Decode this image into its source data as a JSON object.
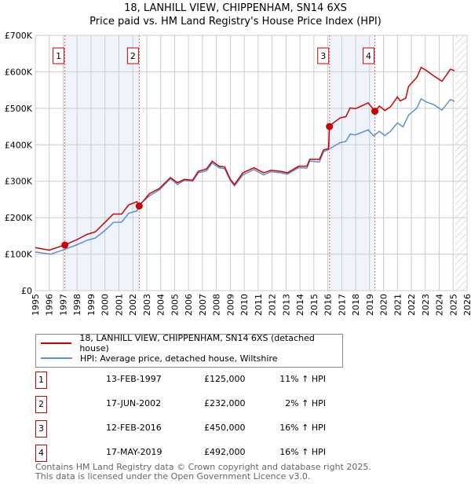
{
  "chart_data": {
    "type": "line",
    "title": "18, LANHILL VIEW, CHIPPENHAM, SN14 6XS",
    "subtitle": "Price paid vs. HM Land Registry's House Price Index (HPI)",
    "xlim": [
      1995,
      2026
    ],
    "ylim": [
      0,
      700000
    ],
    "x_ticks": [
      "1995",
      "1996",
      "1997",
      "1998",
      "1999",
      "2000",
      "2001",
      "2002",
      "2003",
      "2004",
      "2005",
      "2006",
      "2007",
      "2008",
      "2009",
      "2010",
      "2011",
      "2012",
      "2013",
      "2014",
      "2015",
      "2016",
      "2017",
      "2018",
      "2019",
      "2020",
      "2021",
      "2022",
      "2023",
      "2024",
      "2025",
      "2026"
    ],
    "y_ticks": [
      {
        "value": 0,
        "label": "£0"
      },
      {
        "value": 100000,
        "label": "£100K"
      },
      {
        "value": 200000,
        "label": "£200K"
      },
      {
        "value": 300000,
        "label": "£300K"
      },
      {
        "value": 400000,
        "label": "£400K"
      },
      {
        "value": 500000,
        "label": "£500K"
      },
      {
        "value": 600000,
        "label": "£600K"
      },
      {
        "value": 700000,
        "label": "£700K"
      }
    ],
    "grid": true,
    "shaded_periods": [
      [
        1997.12,
        2002.46
      ],
      [
        2016.12,
        2019.38
      ]
    ],
    "forecast_hatch_from": 2025.15,
    "series": [
      {
        "name": "18, LANHILL VIEW, CHIPPENHAM, SN14 6XS (detached house)",
        "color": "#cc0000",
        "points": [
          [
            1995.0,
            118000
          ],
          [
            1996.0,
            111000
          ],
          [
            1997.1,
            125000
          ],
          [
            1998.0,
            140000
          ],
          [
            1998.7,
            154000
          ],
          [
            1999.3,
            161000
          ],
          [
            2000.0,
            187000
          ],
          [
            2000.6,
            210000
          ],
          [
            2001.2,
            210000
          ],
          [
            2001.7,
            235000
          ],
          [
            2002.3,
            244000
          ],
          [
            2002.45,
            232000
          ],
          [
            2003.2,
            266000
          ],
          [
            2003.9,
            280000
          ],
          [
            2004.7,
            310000
          ],
          [
            2005.2,
            296000
          ],
          [
            2005.7,
            305000
          ],
          [
            2006.3,
            303000
          ],
          [
            2006.7,
            327000
          ],
          [
            2007.3,
            334000
          ],
          [
            2007.7,
            355000
          ],
          [
            2008.2,
            341000
          ],
          [
            2008.6,
            339000
          ],
          [
            2009.0,
            305000
          ],
          [
            2009.3,
            291000
          ],
          [
            2009.9,
            323000
          ],
          [
            2010.7,
            337000
          ],
          [
            2011.4,
            323000
          ],
          [
            2011.9,
            330000
          ],
          [
            2012.6,
            327000
          ],
          [
            2013.1,
            323000
          ],
          [
            2013.9,
            341000
          ],
          [
            2014.5,
            341000
          ],
          [
            2014.7,
            360000
          ],
          [
            2015.4,
            360000
          ],
          [
            2015.7,
            386000
          ],
          [
            2016.05,
            389000
          ],
          [
            2016.12,
            450000
          ],
          [
            2016.4,
            460000
          ],
          [
            2016.9,
            474000
          ],
          [
            2017.3,
            477000
          ],
          [
            2017.6,
            501000
          ],
          [
            2018.0,
            499000
          ],
          [
            2018.9,
            515000
          ],
          [
            2019.38,
            492000
          ],
          [
            2019.7,
            506000
          ],
          [
            2020.1,
            494000
          ],
          [
            2020.5,
            504000
          ],
          [
            2021.0,
            531000
          ],
          [
            2021.2,
            520000
          ],
          [
            2021.6,
            528000
          ],
          [
            2021.8,
            560000
          ],
          [
            2022.4,
            585000
          ],
          [
            2022.7,
            612000
          ],
          [
            2023.1,
            603000
          ],
          [
            2023.6,
            589000
          ],
          [
            2024.2,
            574000
          ],
          [
            2024.8,
            607000
          ],
          [
            2025.1,
            603000
          ]
        ]
      },
      {
        "name": "HPI: Average price, detached house, Wiltshire",
        "color": "#5b8fd0",
        "points": [
          [
            1995.0,
            106000
          ],
          [
            1996.1,
            100000
          ],
          [
            1997.1,
            113000
          ],
          [
            1998.0,
            126000
          ],
          [
            1998.7,
            138000
          ],
          [
            1999.3,
            144000
          ],
          [
            2000.0,
            165000
          ],
          [
            2000.6,
            187000
          ],
          [
            2001.2,
            188000
          ],
          [
            2001.7,
            212000
          ],
          [
            2002.3,
            219000
          ],
          [
            2002.6,
            240000
          ],
          [
            2003.2,
            260000
          ],
          [
            2003.9,
            276000
          ],
          [
            2004.7,
            307000
          ],
          [
            2005.2,
            291000
          ],
          [
            2005.7,
            302000
          ],
          [
            2006.3,
            300000
          ],
          [
            2006.7,
            323000
          ],
          [
            2007.3,
            329000
          ],
          [
            2007.7,
            350000
          ],
          [
            2008.2,
            337000
          ],
          [
            2008.6,
            334000
          ],
          [
            2009.0,
            302000
          ],
          [
            2009.3,
            287000
          ],
          [
            2009.9,
            317000
          ],
          [
            2010.7,
            332000
          ],
          [
            2011.4,
            317000
          ],
          [
            2011.9,
            326000
          ],
          [
            2012.6,
            323000
          ],
          [
            2013.1,
            319000
          ],
          [
            2013.9,
            337000
          ],
          [
            2014.5,
            336000
          ],
          [
            2014.7,
            355000
          ],
          [
            2015.4,
            353000
          ],
          [
            2015.7,
            381000
          ],
          [
            2016.0,
            386000
          ],
          [
            2016.4,
            395000
          ],
          [
            2016.9,
            406000
          ],
          [
            2017.3,
            409000
          ],
          [
            2017.6,
            429000
          ],
          [
            2018.0,
            427000
          ],
          [
            2018.9,
            441000
          ],
          [
            2019.3,
            424000
          ],
          [
            2019.7,
            437000
          ],
          [
            2020.1,
            425000
          ],
          [
            2020.5,
            437000
          ],
          [
            2021.0,
            460000
          ],
          [
            2021.4,
            449000
          ],
          [
            2021.8,
            481000
          ],
          [
            2022.4,
            501000
          ],
          [
            2022.7,
            526000
          ],
          [
            2023.1,
            517000
          ],
          [
            2023.6,
            510000
          ],
          [
            2024.2,
            495000
          ],
          [
            2024.8,
            524000
          ],
          [
            2025.1,
            519000
          ]
        ]
      }
    ],
    "sales": [
      {
        "label": "1",
        "date": "13-FEB-1997",
        "x": 1997.12,
        "price_value": 125000,
        "price": "£125,000",
        "hpi": "11% ↑ HPI"
      },
      {
        "label": "2",
        "date": "17-JUN-2002",
        "x": 2002.46,
        "price_value": 232000,
        "price": "£232,000",
        "hpi": "2% ↑ HPI"
      },
      {
        "label": "3",
        "date": "12-FEB-2016",
        "x": 2016.12,
        "price_value": 450000,
        "price": "£450,000",
        "hpi": "16% ↑ HPI"
      },
      {
        "label": "4",
        "date": "17-MAY-2019",
        "x": 2019.38,
        "price_value": 492000,
        "price": "£492,000",
        "hpi": "16% ↑ HPI"
      }
    ],
    "legend_placement": "below"
  },
  "footer": {
    "line1": "Contains HM Land Registry data © Crown copyright and database right 2025.",
    "line2": "This data is licensed under the Open Government Licence v3.0."
  }
}
